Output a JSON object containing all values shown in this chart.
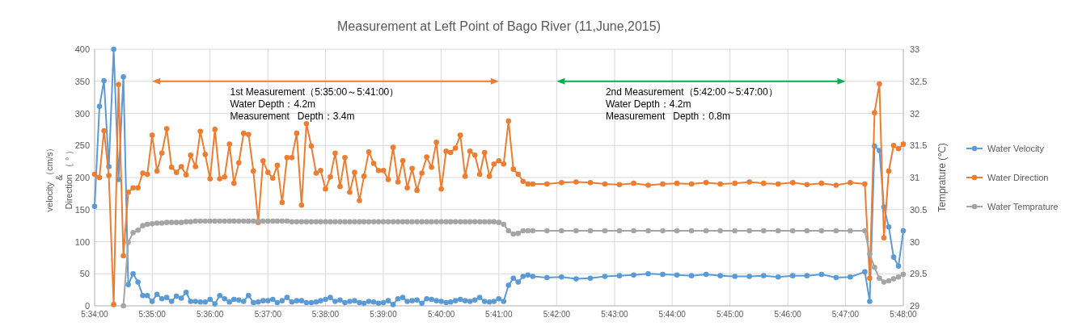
{
  "chart_data": {
    "type": "line",
    "title": "Measurement at Left Point of Bago River (11,June,2015)",
    "ylabel": "velocity （cm/s）\n&\nDirection （ ° ）",
    "y2label": "Temprature (℃)",
    "annotations": [
      "1st Measurement（5:35:00～5:41:00）",
      "Water Depth：4.2m",
      "Measurement   Depth：3.4m",
      "2nd Measurement（5:42:00～5:47:00）",
      "Water Depth：4.2m",
      "Measurement   Depth：0.8m"
    ],
    "x": [
      5.5667,
      5.5681,
      5.5694,
      5.5708,
      5.5722,
      5.5736,
      5.575,
      5.5764,
      5.5778,
      5.5792,
      5.5806,
      5.5819,
      5.5833,
      5.5847,
      5.5861,
      5.5875,
      5.5889,
      5.5903,
      5.5917,
      5.5931,
      5.5944,
      5.5958,
      5.5972,
      5.5986,
      5.6,
      5.6014,
      5.6028,
      5.6042,
      5.6056,
      5.6069,
      5.6083,
      5.6097,
      5.6111,
      5.6125,
      5.6139,
      5.6153,
      5.6167,
      5.6181,
      5.6194,
      5.6208,
      5.6222,
      5.6236,
      5.625,
      5.6264,
      5.6278,
      5.6292,
      5.6306,
      5.6319,
      5.6333,
      5.6347,
      5.6361,
      5.6375,
      5.6389,
      5.6403,
      5.6417,
      5.6431,
      5.6444,
      5.6458,
      5.6472,
      5.6486,
      5.65,
      5.6514,
      5.6528,
      5.6542,
      5.6556,
      5.6569,
      5.6583,
      5.6597,
      5.6611,
      5.6625,
      5.6639,
      5.6653,
      5.6667,
      5.6681,
      5.6694,
      5.6708,
      5.6722,
      5.6736,
      5.675,
      5.6764,
      5.6778,
      5.6792,
      5.6806,
      5.6819,
      5.6833,
      5.6847,
      5.6861,
      5.6875,
      5.6889,
      5.6903,
      5.6917,
      5.6931,
      5.6972,
      5.7014,
      5.7056,
      5.7097,
      5.7139,
      5.7181,
      5.7222,
      5.7264,
      5.7306,
      5.7347,
      5.7389,
      5.7431,
      5.7472,
      5.7514,
      5.7556,
      5.7597,
      5.7639,
      5.7681,
      5.7722,
      5.7764,
      5.7806,
      5.7847,
      5.7889,
      5.7903,
      5.7917,
      5.7931,
      5.7944,
      5.7958,
      5.7972,
      5.7986,
      5.8
    ],
    "series": [
      {
        "name": "Water Velocity",
        "color": "#5b9bd5",
        "values": [
          155,
          311,
          351,
          217,
          400,
          197,
          357,
          33,
          50,
          37,
          16,
          16,
          7,
          18,
          11,
          13,
          7,
          15,
          12,
          21,
          7,
          7,
          6,
          6,
          10,
          3,
          16,
          11,
          6,
          10,
          9,
          7,
          16,
          5,
          6,
          8,
          8,
          10,
          5,
          8,
          13,
          6,
          8,
          8,
          5,
          5,
          6,
          8,
          10,
          13,
          7,
          9,
          5,
          7,
          8,
          5,
          4,
          7,
          6,
          4,
          5,
          8,
          2,
          11,
          13,
          7,
          8,
          9,
          4,
          11,
          10,
          8,
          7,
          5,
          6,
          8,
          10,
          8,
          7,
          9,
          13,
          7,
          6,
          7,
          11,
          7,
          32,
          43,
          37,
          46,
          48,
          46,
          44,
          45,
          42,
          43,
          46,
          47,
          48,
          50,
          49,
          48,
          47,
          49,
          47,
          46,
          46,
          47,
          45,
          47,
          47,
          49,
          44,
          45,
          53,
          7,
          249,
          242,
          154,
          123,
          76,
          62,
          117
        ]
      },
      {
        "name": "Water Direction",
        "color": "#ed7d31",
        "values": [
          205,
          200,
          273,
          203,
          2,
          345,
          78,
          177,
          184,
          184,
          207,
          205,
          266,
          210,
          238,
          276,
          216,
          208,
          217,
          204,
          235,
          217,
          272,
          236,
          198,
          275,
          198,
          201,
          252,
          191,
          223,
          269,
          267,
          210,
          130,
          226,
          208,
          199,
          219,
          161,
          231,
          231,
          269,
          157,
          284,
          249,
          207,
          211,
          182,
          201,
          238,
          186,
          231,
          177,
          208,
          164,
          202,
          240,
          222,
          211,
          211,
          197,
          247,
          193,
          226,
          184,
          214,
          180,
          207,
          232,
          216,
          255,
          182,
          241,
          239,
          246,
          266,
          202,
          241,
          235,
          205,
          239,
          202,
          221,
          226,
          221,
          288,
          213,
          205,
          194,
          190,
          190,
          190,
          192,
          193,
          192,
          190,
          189,
          191,
          188,
          190,
          191,
          190,
          192,
          190,
          191,
          193,
          191,
          190,
          192,
          189,
          191,
          188,
          192,
          190,
          43,
          301,
          346,
          106,
          210,
          250,
          245,
          252
        ]
      },
      {
        "name": "Water Temprature",
        "color": "#a5a5a5",
        "axis": "y2",
        "values": [
          null,
          null,
          null,
          null,
          null,
          null,
          29,
          29.99,
          30.14,
          30.18,
          30.25,
          30.27,
          30.28,
          30.29,
          30.29,
          30.3,
          30.3,
          30.3,
          30.3,
          30.31,
          30.31,
          30.32,
          30.32,
          30.32,
          30.32,
          30.32,
          30.32,
          30.32,
          30.32,
          30.32,
          30.32,
          30.32,
          30.32,
          30.32,
          30.32,
          30.32,
          30.32,
          30.32,
          30.32,
          30.32,
          30.32,
          30.31,
          30.31,
          30.31,
          30.31,
          30.31,
          30.31,
          30.31,
          30.31,
          30.31,
          30.31,
          30.31,
          30.31,
          30.31,
          30.31,
          30.31,
          30.31,
          30.31,
          30.31,
          30.31,
          30.31,
          30.31,
          30.31,
          30.31,
          30.31,
          30.31,
          30.31,
          30.31,
          30.31,
          30.31,
          30.31,
          30.31,
          30.31,
          30.31,
          30.31,
          30.31,
          30.31,
          30.31,
          30.31,
          30.31,
          30.31,
          30.31,
          30.31,
          30.31,
          30.3,
          30.27,
          30.17,
          30.12,
          30.13,
          30.17,
          30.17,
          30.17,
          30.17,
          30.17,
          30.17,
          30.17,
          30.17,
          30.17,
          30.17,
          30.17,
          30.17,
          30.17,
          30.17,
          30.17,
          30.17,
          30.17,
          30.17,
          30.17,
          30.17,
          30.17,
          30.17,
          30.17,
          30.17,
          30.17,
          30.17,
          29.81,
          29.6,
          29.43,
          29.37,
          29.39,
          29.42,
          29.45,
          29.49
        ]
      }
    ],
    "xlim": [
      5.5667,
      5.8
    ],
    "xticks": [
      {
        "value": 5.5667,
        "label": "5:34:00"
      },
      {
        "value": 5.5833,
        "label": "5:35:00"
      },
      {
        "value": 5.6,
        "label": "5:36:00"
      },
      {
        "value": 5.6167,
        "label": "5:37:00"
      },
      {
        "value": 5.6333,
        "label": "5:38:00"
      },
      {
        "value": 5.65,
        "label": "5:39:00"
      },
      {
        "value": 5.6667,
        "label": "5:40:00"
      },
      {
        "value": 5.6833,
        "label": "5:41:00"
      },
      {
        "value": 5.7,
        "label": "5:42:00"
      },
      {
        "value": 5.7167,
        "label": "5:43:00"
      },
      {
        "value": 5.7333,
        "label": "5:44:00"
      },
      {
        "value": 5.75,
        "label": "5:45:00"
      },
      {
        "value": 5.7667,
        "label": "5:46:00"
      },
      {
        "value": 5.7833,
        "label": "5:47:00"
      },
      {
        "value": 5.8,
        "label": "5:48:00"
      }
    ],
    "ylim": [
      0,
      400
    ],
    "yticks": [
      0,
      50,
      100,
      150,
      200,
      250,
      300,
      350,
      400
    ],
    "y2lim": [
      29,
      33
    ],
    "y2ticks": [
      29,
      29.5,
      30,
      30.5,
      31,
      31.5,
      32,
      32.5,
      33
    ],
    "grid": true,
    "legend": "right",
    "marker": "circle",
    "line_style": "solid"
  }
}
